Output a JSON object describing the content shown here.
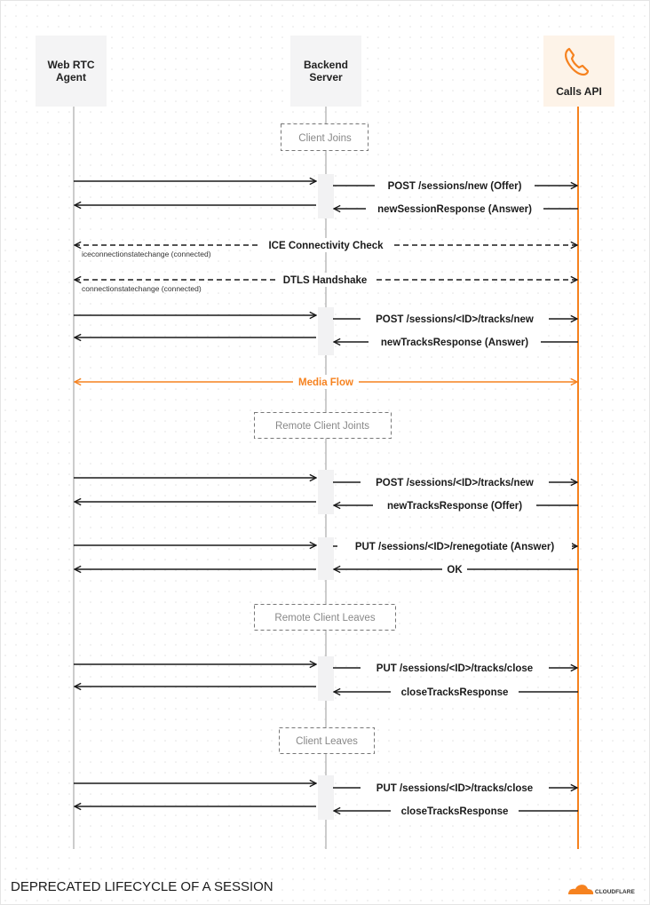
{
  "title": "DEPRECATED LIFECYCLE OF A SESSION",
  "logo": "CLOUDFLARE",
  "colors": {
    "accent": "#f6821f",
    "line": "#1a1a1a",
    "lifeline": "#bbbbbb",
    "actor_bg": "#f4f4f5",
    "calls_bg": "#fdf3e8"
  },
  "actors": [
    {
      "line1": "Web RTC",
      "line2": "Agent"
    },
    {
      "line1": "Backend",
      "line2": "Server"
    },
    {
      "label": "Calls API",
      "icon": "phone-icon"
    }
  ],
  "phases": [
    "Client Joins",
    "Remote Client Joints",
    "Remote Client Leaves",
    "Client Leaves"
  ],
  "messages": {
    "post_new": "POST /sessions/new (Offer)",
    "new_session_resp": "newSessionResponse (Answer)",
    "ice": "ICE Connectivity Check",
    "ice_sub": "iceconnectionstatechange (connected)",
    "dtls": "DTLS Handshake",
    "dtls_sub": "connectionstatechange (connected)",
    "tracks_new_1": "POST /sessions/<ID>/tracks/new",
    "tracks_resp_1": "newTracksResponse (Answer)",
    "media": "Media Flow",
    "tracks_new_2": "POST /sessions/<ID>/tracks/new",
    "tracks_resp_2": "newTracksResponse (Offer)",
    "renegotiate": "PUT /sessions/<ID>/renegotiate (Answer)",
    "ok": "OK",
    "close_1": "PUT /sessions/<ID>/tracks/close",
    "close_resp_1": "closeTracksResponse",
    "close_2": "PUT /sessions/<ID>/tracks/close",
    "close_resp_2": "closeTracksResponse"
  }
}
